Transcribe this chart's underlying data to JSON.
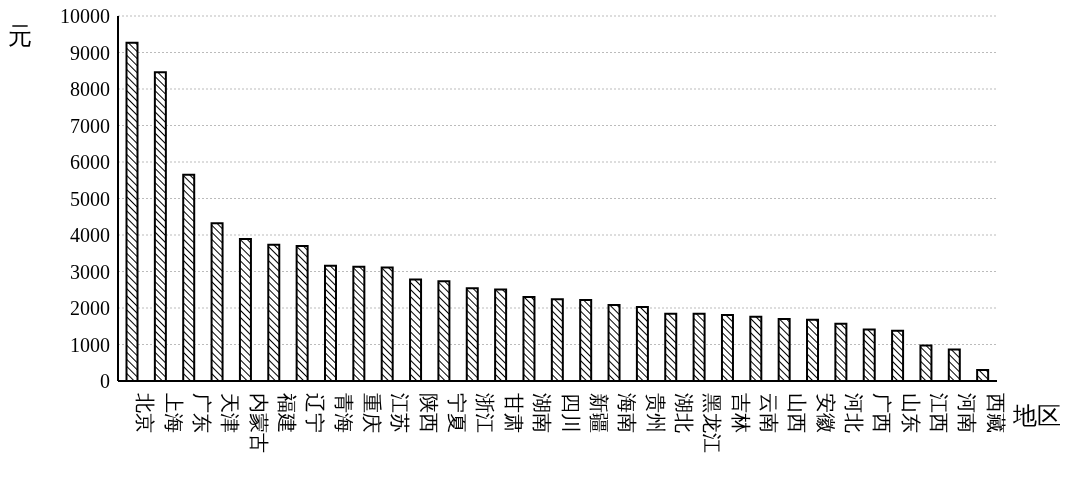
{
  "chart_data": {
    "type": "bar",
    "ylabel": "元",
    "xlabel": "地区",
    "categories": [
      "北京",
      "上海",
      "广东",
      "天津",
      "内蒙古",
      "福建",
      "辽宁",
      "青海",
      "重庆",
      "江苏",
      "陕西",
      "宁夏",
      "浙江",
      "甘肃",
      "湖南",
      "四川",
      "新疆",
      "海南",
      "贵州",
      "湖北",
      "黑龙江",
      "吉林",
      "云南",
      "山西",
      "安徽",
      "河北",
      "广西",
      "山东",
      "江西",
      "河南",
      "西藏"
    ],
    "values": [
      9270,
      8460,
      5650,
      4320,
      3890,
      3730,
      3700,
      3160,
      3130,
      3110,
      2780,
      2730,
      2540,
      2510,
      2300,
      2240,
      2220,
      2080,
      2030,
      1840,
      1840,
      1810,
      1760,
      1700,
      1680,
      1570,
      1410,
      1380,
      970,
      860,
      300
    ],
    "color": "#000000",
    "ylim": [
      0,
      10000
    ],
    "yticks": [
      0,
      1000,
      2000,
      3000,
      4000,
      5000,
      6000,
      7000,
      8000,
      9000,
      10000
    ],
    "grid": "y"
  }
}
